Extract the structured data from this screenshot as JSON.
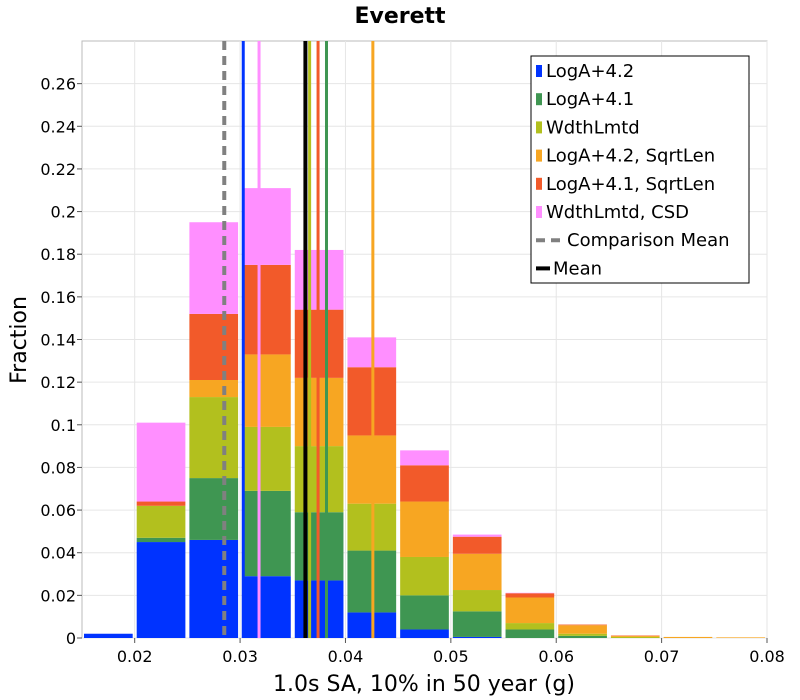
{
  "chart_data": {
    "type": "bar",
    "stacked": true,
    "title": "Everett",
    "xlabel": "1.0s SA, 10% in 50 year (g)",
    "ylabel": "Fraction",
    "xlim": [
      0.015,
      0.08
    ],
    "ylim": [
      0,
      0.28
    ],
    "bin_width": 0.005,
    "x_ticks": [
      0.02,
      0.03,
      0.04,
      0.05,
      0.06,
      0.07,
      0.08
    ],
    "x_tick_labels": [
      "0.02",
      "0.03",
      "0.04",
      "0.05",
      "0.06",
      "0.07",
      "0.08"
    ],
    "y_ticks": [
      0,
      0.02,
      0.04,
      0.06,
      0.08,
      0.1,
      0.12,
      0.14,
      0.16,
      0.18,
      0.2,
      0.22,
      0.24,
      0.26
    ],
    "y_tick_labels": [
      "0",
      "0.02",
      "0.04",
      "0.06",
      "0.08",
      "0.1",
      "0.12",
      "0.14",
      "0.16",
      "0.18",
      "0.2",
      "0.22",
      "0.24",
      "0.26"
    ],
    "grid": true,
    "legend_position": "top-right",
    "bin_centers": [
      0.0175,
      0.0225,
      0.0275,
      0.0325,
      0.0375,
      0.0425,
      0.0475,
      0.0525,
      0.0575,
      0.0625,
      0.0675,
      0.0725,
      0.0775
    ],
    "series": [
      {
        "name": "LogA+4.2",
        "color": "#0033ff",
        "values": [
          0.002,
          0.045,
          0.046,
          0.029,
          0.027,
          0.012,
          0.004,
          0.0005,
          0.0,
          0.0,
          0.0,
          0.0,
          0.0
        ]
      },
      {
        "name": "LogA+4.1",
        "color": "#3f9652",
        "values": [
          0.0,
          0.002,
          0.029,
          0.04,
          0.032,
          0.029,
          0.016,
          0.012,
          0.004,
          0.001,
          0.0,
          0.0,
          0.0
        ]
      },
      {
        "name": "WdthLmtd",
        "color": "#b2c01e",
        "values": [
          0.0,
          0.015,
          0.038,
          0.03,
          0.031,
          0.022,
          0.018,
          0.01,
          0.003,
          0.001,
          0.0005,
          0.0,
          0.0
        ]
      },
      {
        "name": "LogA+4.2, SqrtLen",
        "color": "#f7a622",
        "values": [
          0.0,
          0.0,
          0.008,
          0.034,
          0.032,
          0.032,
          0.026,
          0.017,
          0.012,
          0.004,
          0.0005,
          0.0005,
          0.0003
        ]
      },
      {
        "name": "LogA+4.1, SqrtLen",
        "color": "#f25a2a",
        "values": [
          0.0,
          0.002,
          0.031,
          0.042,
          0.032,
          0.032,
          0.017,
          0.008,
          0.002,
          0.0003,
          0.0002,
          0.0,
          0.0
        ]
      },
      {
        "name": "WdthLmtd, CSD",
        "color": "#ff8fff",
        "values": [
          0.0,
          0.037,
          0.043,
          0.036,
          0.028,
          0.014,
          0.007,
          0.001,
          0.0002,
          0.0,
          0.0,
          0.0,
          0.0
        ]
      }
    ],
    "mean_lines": [
      {
        "series": "LogA+4.2",
        "x": 0.0303,
        "color": "#0033ff"
      },
      {
        "series": "WdthLmtd, CSD",
        "x": 0.0318,
        "color": "#ff8fff"
      },
      {
        "series": "WdthLmtd",
        "x": 0.0366,
        "color": "#b2c01e"
      },
      {
        "series": "LogA+4.1, SqrtLen",
        "x": 0.0374,
        "color": "#f25a2a"
      },
      {
        "series": "LogA+4.1",
        "x": 0.0382,
        "color": "#3f9652"
      },
      {
        "series": "LogA+4.2, SqrtLen",
        "x": 0.0426,
        "color": "#f7a622"
      }
    ],
    "mean": {
      "label": "Mean",
      "x": 0.0362,
      "color": "#000000"
    },
    "comparison_mean": {
      "label": "Comparison Mean",
      "x": 0.0285,
      "color": "#808080"
    },
    "legend_entries": [
      "LogA+4.2",
      "LogA+4.1",
      "WdthLmtd",
      "LogA+4.2, SqrtLen",
      "LogA+4.1, SqrtLen",
      "WdthLmtd, CSD",
      "Comparison Mean",
      "Mean"
    ]
  }
}
